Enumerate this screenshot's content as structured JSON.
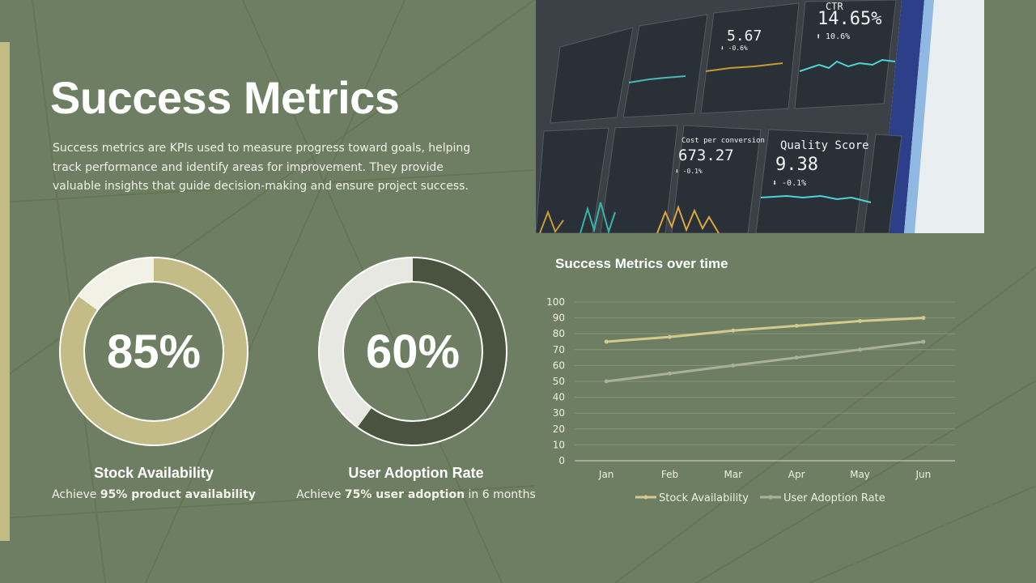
{
  "slide": {
    "title": "Success Metrics",
    "description": "Success metrics are KPIs used to measure progress toward goals, helping track performance and identify areas for improvement. They provide valuable insights that guide decision-making and ensure project success."
  },
  "photo": {
    "tiles": [
      {
        "label": "CTR",
        "value": "14.65%",
        "delta": "⬆ 10.6%"
      },
      {
        "label": "",
        "value": "5.67",
        "delta": "⬇ -0.6%"
      },
      {
        "label": "Cost per conversion",
        "value": "673.27",
        "delta": "⬇ -0.1%"
      },
      {
        "label": "Quality Score",
        "value": "9.38",
        "delta": "⬇ -0.1%"
      }
    ]
  },
  "metrics": [
    {
      "percent": 85,
      "percent_label": "85%",
      "name": "Stock Availability",
      "goal_prefix": "Achieve ",
      "goal_bold": "95% product availability",
      "goal_suffix": "",
      "color": "#c4bc86",
      "track_color": "#f1f1e6"
    },
    {
      "percent": 60,
      "percent_label": "60%",
      "name": "User Adoption Rate",
      "goal_prefix": "Achieve ",
      "goal_bold": "75% user adoption",
      "goal_suffix": " in 6 months",
      "color": "#4a5240",
      "track_color": "#e7e8e1"
    }
  ],
  "chart_data": {
    "type": "line",
    "title": "Success Metrics over time",
    "categories": [
      "Jan",
      "Feb",
      "Mar",
      "Apr",
      "May",
      "Jun"
    ],
    "series": [
      {
        "name": "Stock Availability",
        "values": [
          75,
          78,
          82,
          85,
          88,
          90
        ],
        "color": "#d3ca8e"
      },
      {
        "name": "User Adoption Rate",
        "values": [
          50,
          55,
          60,
          65,
          70,
          75
        ],
        "color": "#a9b09c"
      }
    ],
    "ylim": [
      0,
      100
    ],
    "yticks": [
      "0",
      "10",
      "20",
      "30",
      "40",
      "50",
      "60",
      "70",
      "80",
      "90",
      "100"
    ],
    "grid": true,
    "legend": "bottom"
  }
}
